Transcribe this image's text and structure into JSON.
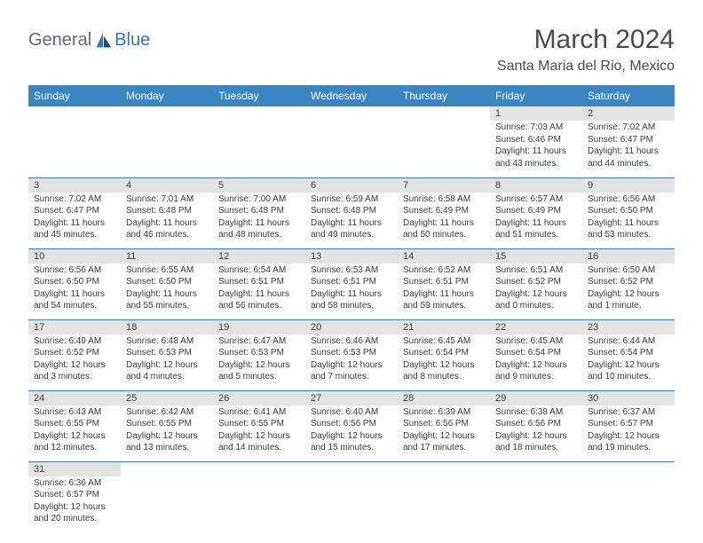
{
  "logo": {
    "text1": "General",
    "text2": "Blue"
  },
  "title": "March 2024",
  "location": "Santa Maria del Rio, Mexico",
  "colors": {
    "header_bg": "#3a85c2",
    "numbar_bg": "#e3e3e3",
    "row_divider": "#3a7ab5",
    "text": "#3a3a3a",
    "logo_gray": "#5a6a78",
    "logo_blue": "#2e78b8",
    "logo_dark": "#1e4a6e"
  },
  "weekdays": [
    "Sunday",
    "Monday",
    "Tuesday",
    "Wednesday",
    "Thursday",
    "Friday",
    "Saturday"
  ],
  "weeks": [
    [
      null,
      null,
      null,
      null,
      null,
      {
        "n": "1",
        "sr": "Sunrise: 7:03 AM",
        "ss": "Sunset: 6:46 PM",
        "dl": "Daylight: 11 hours and 43 minutes."
      },
      {
        "n": "2",
        "sr": "Sunrise: 7:02 AM",
        "ss": "Sunset: 6:47 PM",
        "dl": "Daylight: 11 hours and 44 minutes."
      }
    ],
    [
      {
        "n": "3",
        "sr": "Sunrise: 7:02 AM",
        "ss": "Sunset: 6:47 PM",
        "dl": "Daylight: 11 hours and 45 minutes."
      },
      {
        "n": "4",
        "sr": "Sunrise: 7:01 AM",
        "ss": "Sunset: 6:48 PM",
        "dl": "Daylight: 11 hours and 46 minutes."
      },
      {
        "n": "5",
        "sr": "Sunrise: 7:00 AM",
        "ss": "Sunset: 6:48 PM",
        "dl": "Daylight: 11 hours and 48 minutes."
      },
      {
        "n": "6",
        "sr": "Sunrise: 6:59 AM",
        "ss": "Sunset: 6:48 PM",
        "dl": "Daylight: 11 hours and 49 minutes."
      },
      {
        "n": "7",
        "sr": "Sunrise: 6:58 AM",
        "ss": "Sunset: 6:49 PM",
        "dl": "Daylight: 11 hours and 50 minutes."
      },
      {
        "n": "8",
        "sr": "Sunrise: 6:57 AM",
        "ss": "Sunset: 6:49 PM",
        "dl": "Daylight: 11 hours and 51 minutes."
      },
      {
        "n": "9",
        "sr": "Sunrise: 6:56 AM",
        "ss": "Sunset: 6:50 PM",
        "dl": "Daylight: 11 hours and 53 minutes."
      }
    ],
    [
      {
        "n": "10",
        "sr": "Sunrise: 6:56 AM",
        "ss": "Sunset: 6:50 PM",
        "dl": "Daylight: 11 hours and 54 minutes."
      },
      {
        "n": "11",
        "sr": "Sunrise: 6:55 AM",
        "ss": "Sunset: 6:50 PM",
        "dl": "Daylight: 11 hours and 55 minutes."
      },
      {
        "n": "12",
        "sr": "Sunrise: 6:54 AM",
        "ss": "Sunset: 6:51 PM",
        "dl": "Daylight: 11 hours and 56 minutes."
      },
      {
        "n": "13",
        "sr": "Sunrise: 6:53 AM",
        "ss": "Sunset: 6:51 PM",
        "dl": "Daylight: 11 hours and 58 minutes."
      },
      {
        "n": "14",
        "sr": "Sunrise: 6:52 AM",
        "ss": "Sunset: 6:51 PM",
        "dl": "Daylight: 11 hours and 59 minutes."
      },
      {
        "n": "15",
        "sr": "Sunrise: 6:51 AM",
        "ss": "Sunset: 6:52 PM",
        "dl": "Daylight: 12 hours and 0 minutes."
      },
      {
        "n": "16",
        "sr": "Sunrise: 6:50 AM",
        "ss": "Sunset: 6:52 PM",
        "dl": "Daylight: 12 hours and 1 minute."
      }
    ],
    [
      {
        "n": "17",
        "sr": "Sunrise: 6:49 AM",
        "ss": "Sunset: 6:52 PM",
        "dl": "Daylight: 12 hours and 3 minutes."
      },
      {
        "n": "18",
        "sr": "Sunrise: 6:48 AM",
        "ss": "Sunset: 6:53 PM",
        "dl": "Daylight: 12 hours and 4 minutes."
      },
      {
        "n": "19",
        "sr": "Sunrise: 6:47 AM",
        "ss": "Sunset: 6:53 PM",
        "dl": "Daylight: 12 hours and 5 minutes."
      },
      {
        "n": "20",
        "sr": "Sunrise: 6:46 AM",
        "ss": "Sunset: 6:53 PM",
        "dl": "Daylight: 12 hours and 7 minutes."
      },
      {
        "n": "21",
        "sr": "Sunrise: 6:45 AM",
        "ss": "Sunset: 6:54 PM",
        "dl": "Daylight: 12 hours and 8 minutes."
      },
      {
        "n": "22",
        "sr": "Sunrise: 6:45 AM",
        "ss": "Sunset: 6:54 PM",
        "dl": "Daylight: 12 hours and 9 minutes."
      },
      {
        "n": "23",
        "sr": "Sunrise: 6:44 AM",
        "ss": "Sunset: 6:54 PM",
        "dl": "Daylight: 12 hours and 10 minutes."
      }
    ],
    [
      {
        "n": "24",
        "sr": "Sunrise: 6:43 AM",
        "ss": "Sunset: 6:55 PM",
        "dl": "Daylight: 12 hours and 12 minutes."
      },
      {
        "n": "25",
        "sr": "Sunrise: 6:42 AM",
        "ss": "Sunset: 6:55 PM",
        "dl": "Daylight: 12 hours and 13 minutes."
      },
      {
        "n": "26",
        "sr": "Sunrise: 6:41 AM",
        "ss": "Sunset: 6:55 PM",
        "dl": "Daylight: 12 hours and 14 minutes."
      },
      {
        "n": "27",
        "sr": "Sunrise: 6:40 AM",
        "ss": "Sunset: 6:56 PM",
        "dl": "Daylight: 12 hours and 15 minutes."
      },
      {
        "n": "28",
        "sr": "Sunrise: 6:39 AM",
        "ss": "Sunset: 6:56 PM",
        "dl": "Daylight: 12 hours and 17 minutes."
      },
      {
        "n": "29",
        "sr": "Sunrise: 6:38 AM",
        "ss": "Sunset: 6:56 PM",
        "dl": "Daylight: 12 hours and 18 minutes."
      },
      {
        "n": "30",
        "sr": "Sunrise: 6:37 AM",
        "ss": "Sunset: 6:57 PM",
        "dl": "Daylight: 12 hours and 19 minutes."
      }
    ],
    [
      {
        "n": "31",
        "sr": "Sunrise: 6:36 AM",
        "ss": "Sunset: 6:57 PM",
        "dl": "Daylight: 12 hours and 20 minutes."
      },
      null,
      null,
      null,
      null,
      null,
      null
    ]
  ]
}
